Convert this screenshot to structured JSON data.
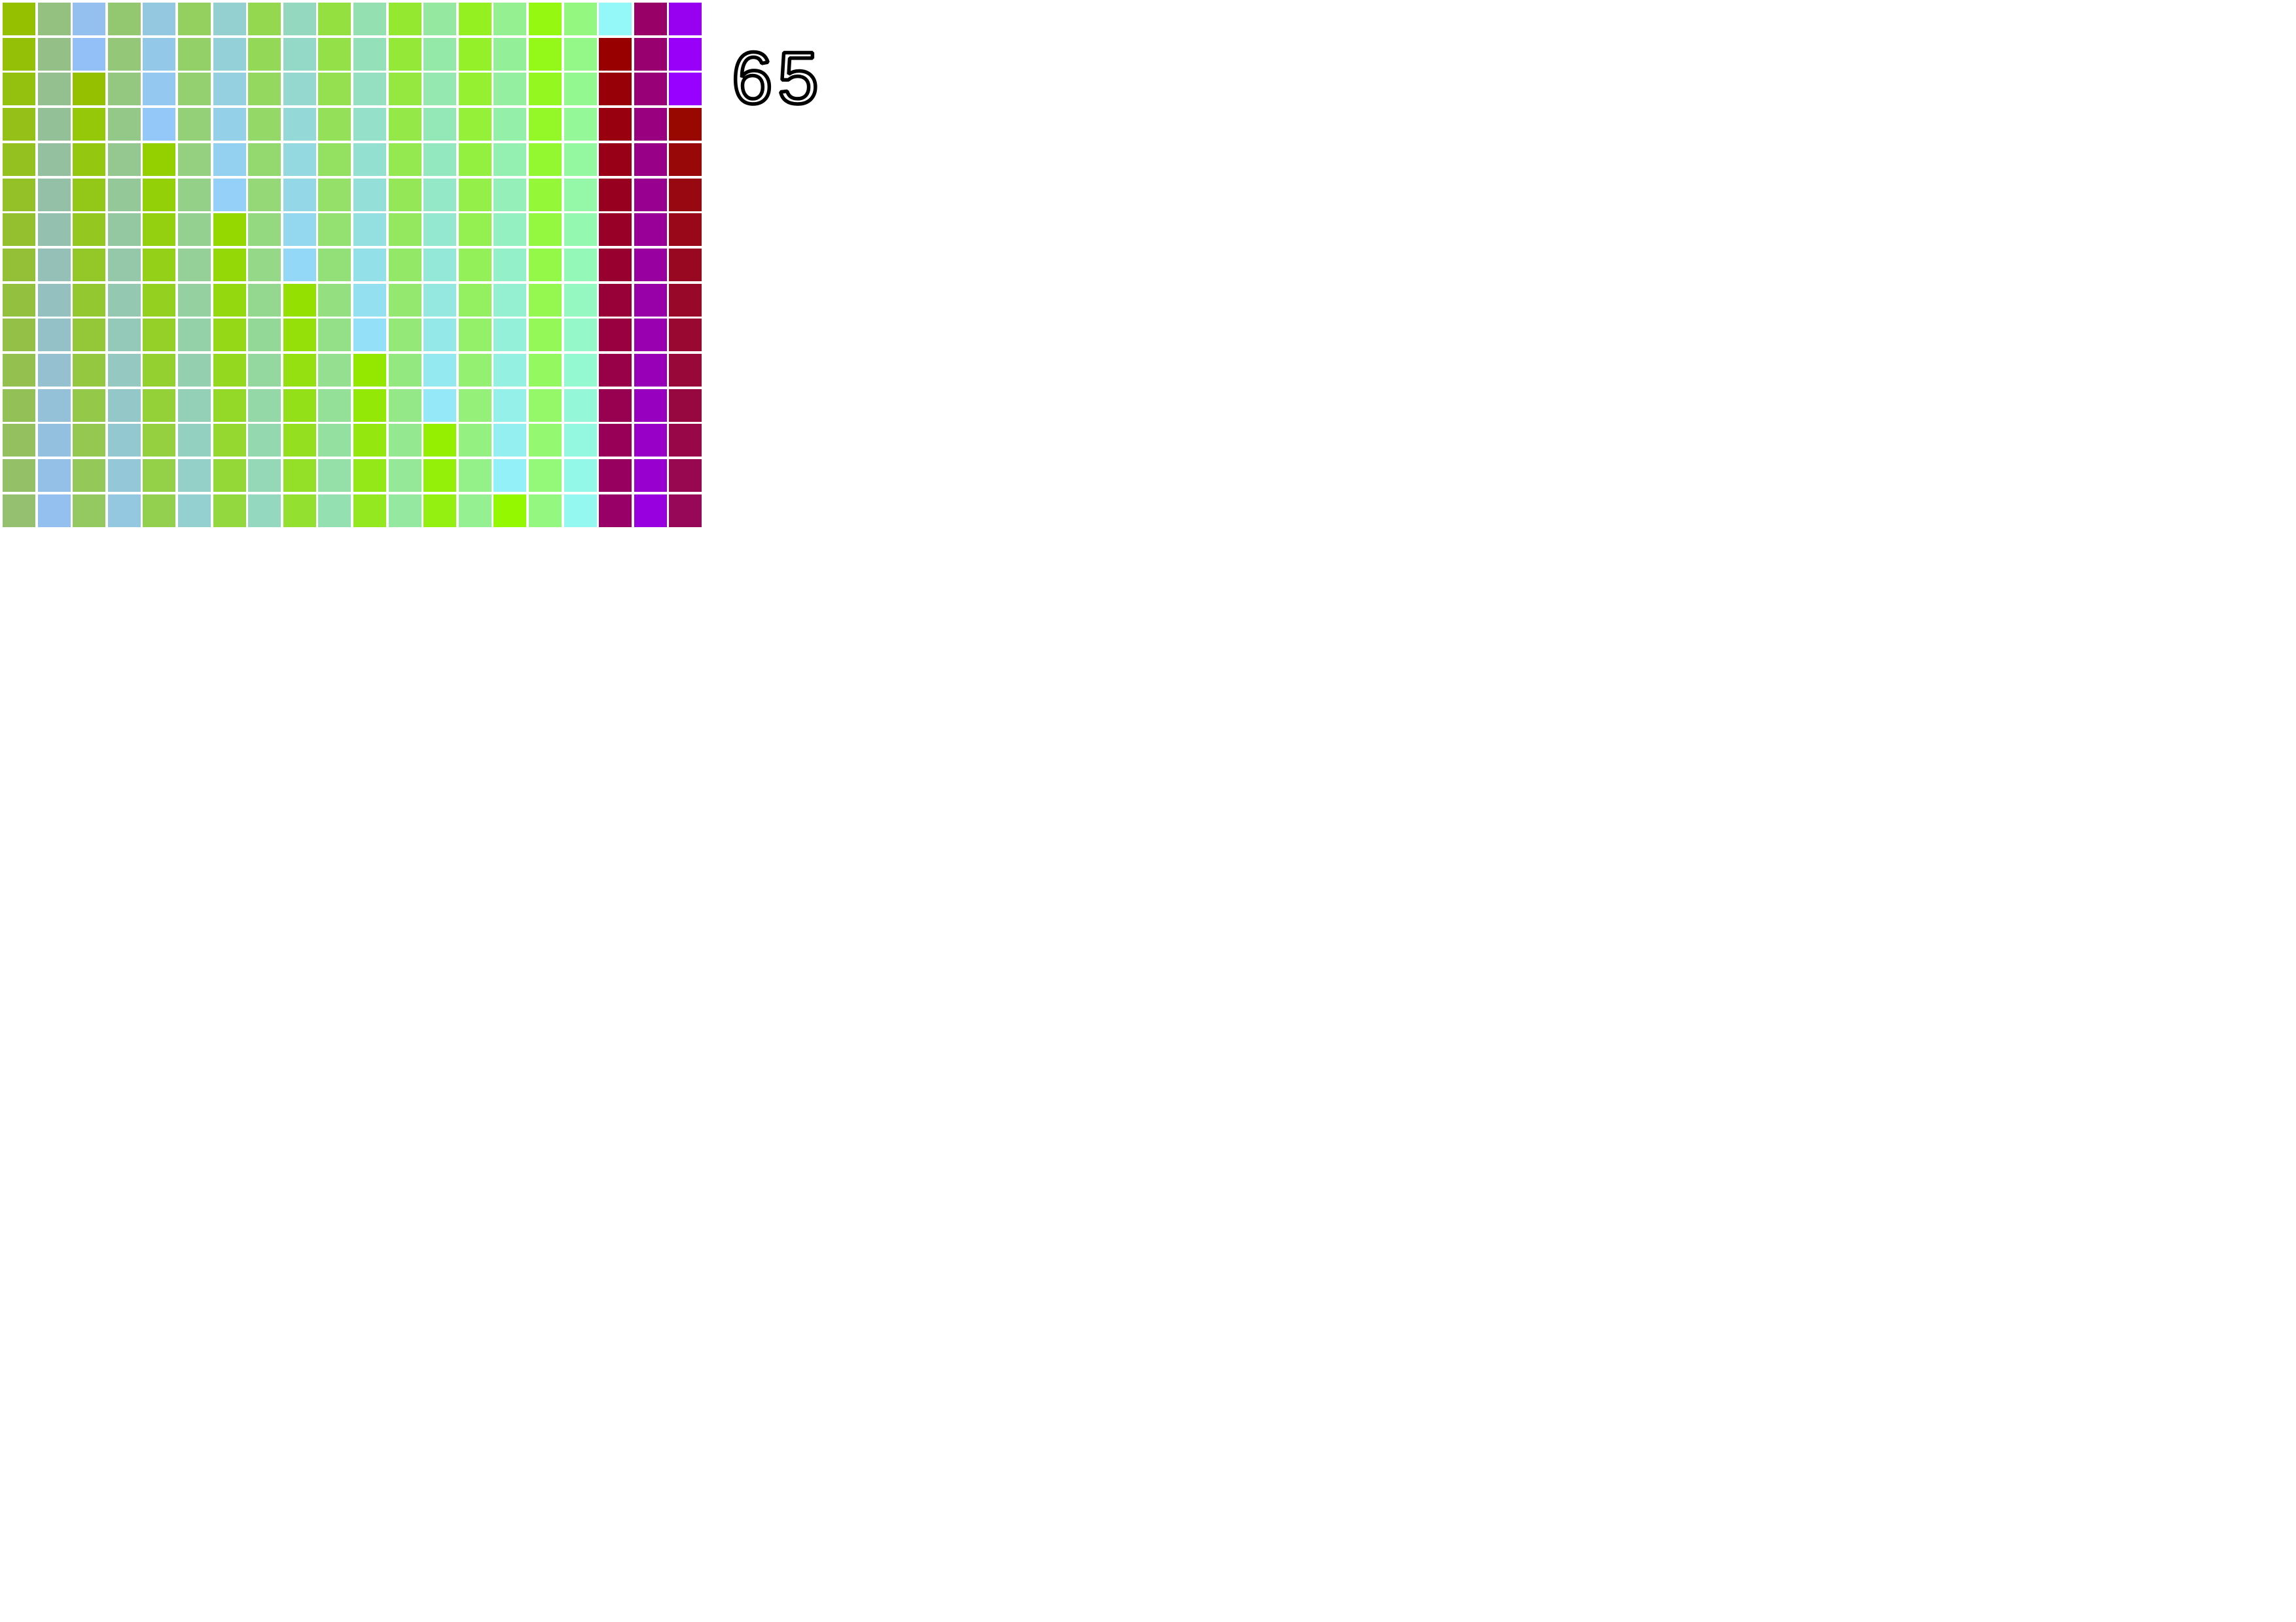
{
  "board": {
    "rows": 15,
    "cols": 20,
    "row_colors": [
      [
        "#94C000",
        "#94C080",
        "#94C0F0",
        "#94C870",
        "#94C8E0",
        "#94D060",
        "#94D0D0",
        "#94D850",
        "#94D8C0",
        "#94E040",
        "#94E0B0",
        "#94E830",
        "#94E8A0",
        "#94F020",
        "#94F090",
        "#94F810",
        "#94F880",
        "#94F8F8",
        "#980068",
        "#9800F0"
      ],
      [
        "#94C008",
        "#94C088",
        "#94C0F8",
        "#94C878",
        "#94C8E8",
        "#94D068",
        "#94D0D8",
        "#94D858",
        "#94D8C8",
        "#94E048",
        "#94E0B8",
        "#94E838",
        "#94E8A8",
        "#94F028",
        "#94F098",
        "#94F818",
        "#94F888",
        "#980000",
        "#980070",
        "#9800F8"
      ],
      [
        "#94C010",
        "#94C090",
        "#94C000",
        "#94C880",
        "#94C8F0",
        "#94D070",
        "#94D0E0",
        "#94D860",
        "#94D8D0",
        "#94E050",
        "#94E0C0",
        "#94E840",
        "#94E8B0",
        "#94F030",
        "#94F0A0",
        "#94F820",
        "#94F890",
        "#980008",
        "#980078",
        "#9800FF"
      ],
      [
        "#94C018",
        "#94C098",
        "#94C808",
        "#94C888",
        "#94C8F8",
        "#94D078",
        "#94D0E8",
        "#94D868",
        "#94D8D8",
        "#94E058",
        "#94E0C8",
        "#94E848",
        "#94E8B8",
        "#94F038",
        "#94F0A8",
        "#94F828",
        "#94F898",
        "#980010",
        "#980080",
        "#980800"
      ],
      [
        "#94C020",
        "#94C0A0",
        "#94C810",
        "#94C890",
        "#94D000",
        "#94D080",
        "#94D0F0",
        "#94D870",
        "#94D8E0",
        "#94E060",
        "#94E0D0",
        "#94E850",
        "#94E8C0",
        "#94F040",
        "#94F0B0",
        "#94F830",
        "#94F8A0",
        "#980018",
        "#980088",
        "#980808"
      ],
      [
        "#94C028",
        "#94C0A8",
        "#94C818",
        "#94C898",
        "#94D008",
        "#94D088",
        "#94D0F8",
        "#94D878",
        "#94D8E8",
        "#94E068",
        "#94E0D8",
        "#94E858",
        "#94E8C8",
        "#94F048",
        "#94F0B8",
        "#94F838",
        "#94F8A8",
        "#980020",
        "#980090",
        "#980810"
      ],
      [
        "#94C030",
        "#94C0B0",
        "#94C820",
        "#94C8A0",
        "#94D010",
        "#94D090",
        "#94D800",
        "#94D880",
        "#94D8F0",
        "#94E070",
        "#94E0E0",
        "#94E860",
        "#94E8D0",
        "#94F050",
        "#94F0C0",
        "#94F840",
        "#94F8B0",
        "#980028",
        "#980098",
        "#980818"
      ],
      [
        "#94C038",
        "#94C0B8",
        "#94C828",
        "#94C8A8",
        "#94D018",
        "#94D098",
        "#94D808",
        "#94D888",
        "#94D8F8",
        "#94E078",
        "#94E0E8",
        "#94E868",
        "#94E8D8",
        "#94F058",
        "#94F0C8",
        "#94F848",
        "#94F8B8",
        "#980030",
        "#9800A0",
        "#980820"
      ],
      [
        "#94C040",
        "#94C0C0",
        "#94C830",
        "#94C8B0",
        "#94D020",
        "#94D0A0",
        "#94D810",
        "#94D890",
        "#94E000",
        "#94E080",
        "#94E0F0",
        "#94E870",
        "#94E8E0",
        "#94F060",
        "#94F0D0",
        "#94F850",
        "#94F8C0",
        "#980038",
        "#9800A8",
        "#980828"
      ],
      [
        "#94C048",
        "#94C0C8",
        "#94C838",
        "#94C8B8",
        "#94D028",
        "#94D0A8",
        "#94D818",
        "#94D898",
        "#94E008",
        "#94E088",
        "#94E0F8",
        "#94E878",
        "#94E8E8",
        "#94F068",
        "#94F0D8",
        "#94F858",
        "#94F8C8",
        "#980040",
        "#9800B0",
        "#980830"
      ],
      [
        "#94C050",
        "#94C0D0",
        "#94C840",
        "#94C8C0",
        "#94D030",
        "#94D0B0",
        "#94D820",
        "#94D8A0",
        "#94E010",
        "#94E090",
        "#94E800",
        "#94E880",
        "#94E8F0",
        "#94F070",
        "#94F0E0",
        "#94F860",
        "#94F8D0",
        "#980048",
        "#9800B8",
        "#980838"
      ],
      [
        "#94C058",
        "#94C0D8",
        "#94C848",
        "#94C8C8",
        "#94D038",
        "#94D0B8",
        "#94D828",
        "#94D8A8",
        "#94E018",
        "#94E098",
        "#94E808",
        "#94E888",
        "#94E8F8",
        "#94F078",
        "#94F0E8",
        "#94F868",
        "#94F8D8",
        "#980050",
        "#9800C0",
        "#980840"
      ],
      [
        "#94C060",
        "#94C0E0",
        "#94C850",
        "#94C8D0",
        "#94D040",
        "#94D0C0",
        "#94D830",
        "#94D8B0",
        "#94E020",
        "#94E0A0",
        "#94E810",
        "#94E890",
        "#94F000",
        "#94F080",
        "#94F0F0",
        "#94F870",
        "#94F8E0",
        "#980058",
        "#9800C8",
        "#980848"
      ],
      [
        "#94C068",
        "#94C0E8",
        "#94C858",
        "#94C8D8",
        "#94D048",
        "#94D0C8",
        "#94D838",
        "#94D8B8",
        "#94E028",
        "#94E0A8",
        "#94E818",
        "#94E898",
        "#94F008",
        "#94F088",
        "#94F0F8",
        "#94F878",
        "#94F8E8",
        "#980060",
        "#9800D0",
        "#980850"
      ],
      [
        "#94C070",
        "#94C0F0",
        "#94C860",
        "#94C8E0",
        "#94D050",
        "#94D0D0",
        "#94D840",
        "#94D8C0",
        "#94E030",
        "#94E0B0",
        "#94E820",
        "#94E8A0",
        "#94F010",
        "#94F090",
        "#94F800",
        "#94F880",
        "#94F8F0",
        "#980068",
        "#9800E0",
        "#980858"
      ]
    ]
  },
  "score": {
    "value": "65",
    "color": "#000000"
  }
}
